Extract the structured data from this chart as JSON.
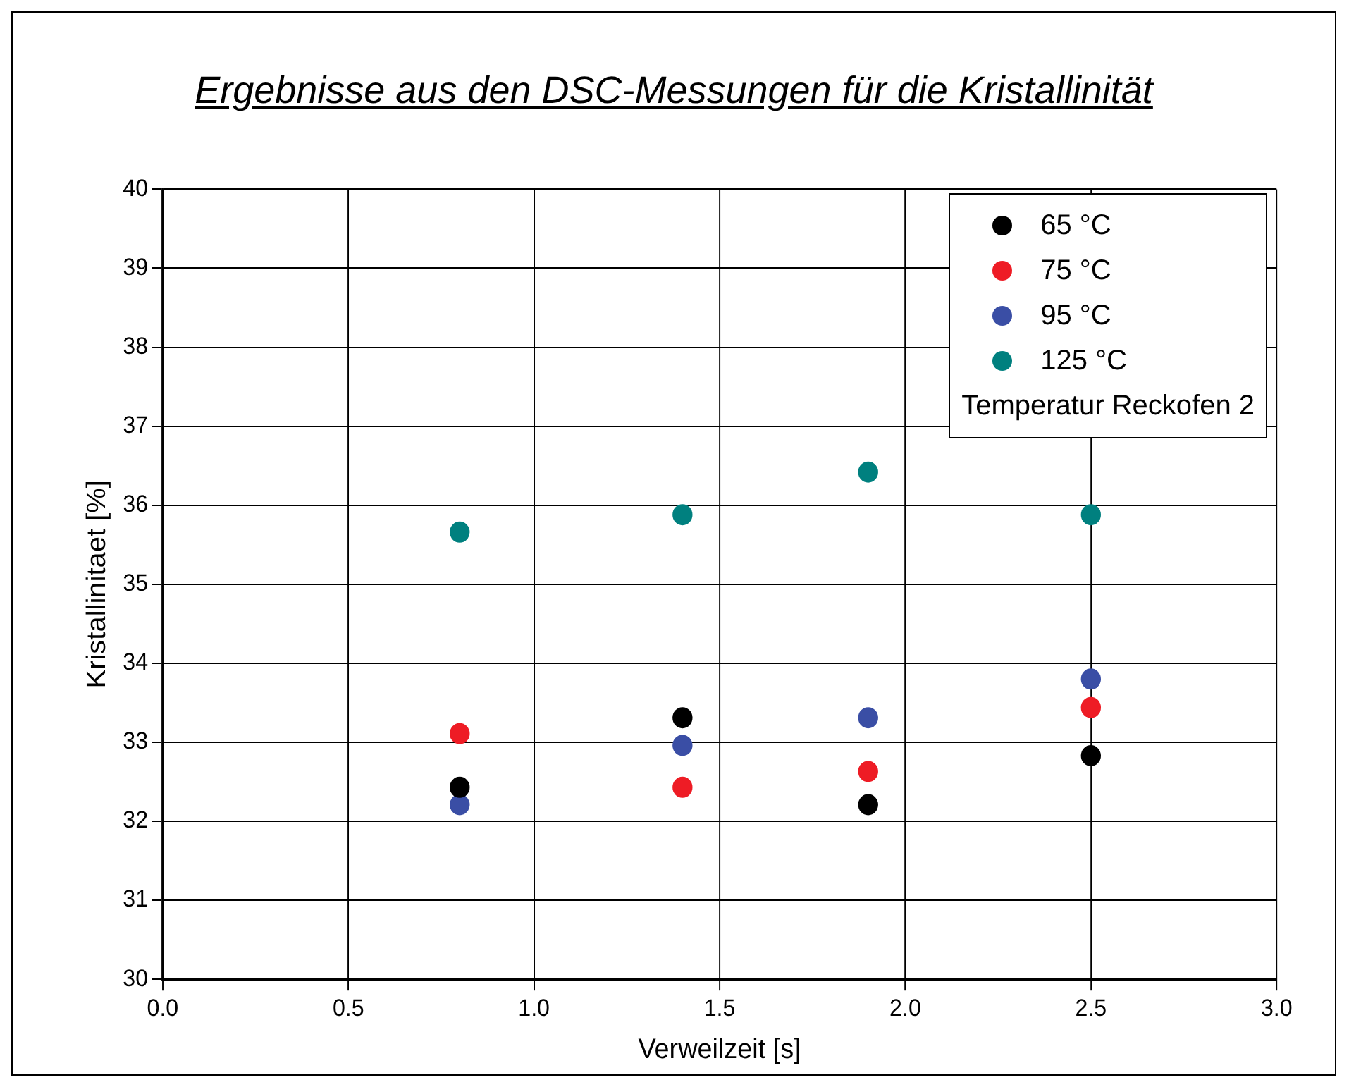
{
  "chart_data": {
    "type": "scatter",
    "title": "Ergebnisse aus den DSC-Messungen für die Kristallinität",
    "xlabel": "Verweilzeit [s]",
    "ylabel": "Kristallinitaet [%]",
    "legend_title": "Temperatur Reckofen 2",
    "legend": "top right",
    "grid": true,
    "marker": "circle",
    "x": [
      0.8,
      1.4,
      1.9,
      2.5
    ],
    "xlim": [
      0,
      3
    ],
    "xticks": [
      {
        "value": 0,
        "label": "0.0"
      },
      {
        "value": 0.5,
        "label": "0.5"
      },
      {
        "value": 1,
        "label": "1.0"
      },
      {
        "value": 1.5,
        "label": "1.5"
      },
      {
        "value": 2,
        "label": "2.0"
      },
      {
        "value": 2.5,
        "label": "2.5"
      },
      {
        "value": 3,
        "label": "3.0"
      }
    ],
    "ylim": [
      30,
      40
    ],
    "yticks": [
      30,
      31,
      32,
      33,
      34,
      35,
      36,
      37,
      38,
      39,
      40
    ],
    "series": [
      {
        "name": "65 °C",
        "color": "#000000",
        "values": [
          32.43,
          33.31,
          32.21,
          32.83
        ]
      },
      {
        "name": "75 °C",
        "color": "#ee1c25",
        "values": [
          33.11,
          32.43,
          32.63,
          33.44
        ]
      },
      {
        "name": "95 °C",
        "color": "#3a4ea5",
        "values": [
          32.21,
          32.96,
          33.31,
          33.8
        ]
      },
      {
        "name": "125 °C",
        "color": "#00807f",
        "values": [
          35.66,
          35.88,
          36.42,
          35.88
        ]
      }
    ]
  }
}
